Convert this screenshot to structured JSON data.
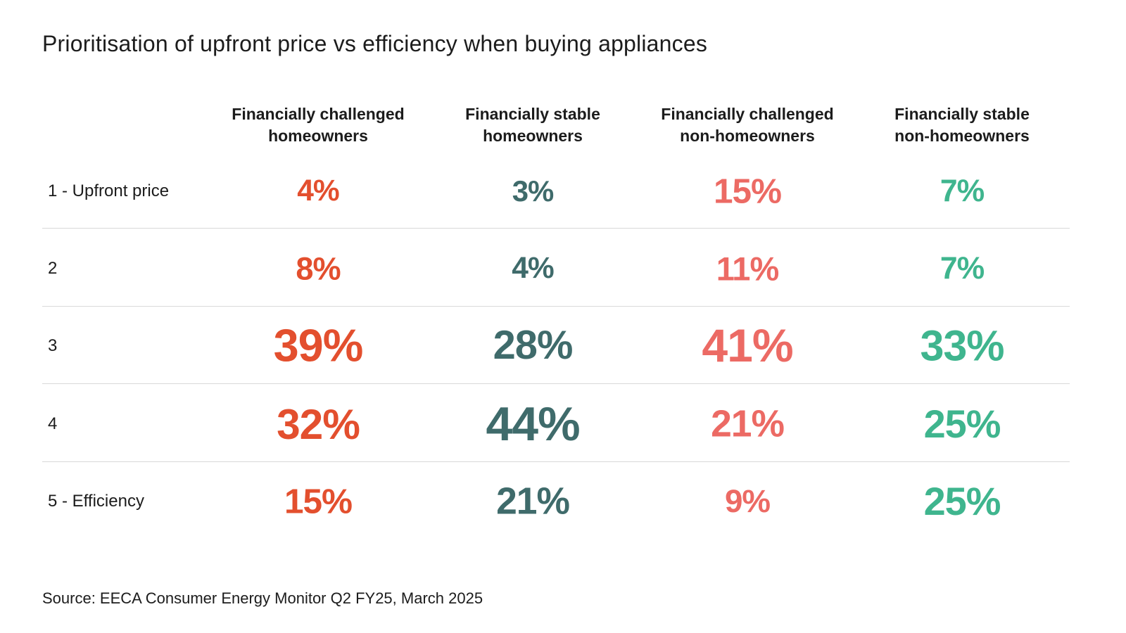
{
  "title": "Prioritisation of upfront price vs efficiency when buying appliances",
  "source": "Source: EECA Consumer Energy Monitor Q2 FY25, March 2025",
  "colors": {
    "text": "#1c1c1c",
    "divider": "#d9d9d9"
  },
  "chart_data": {
    "type": "table",
    "title": "Prioritisation of upfront price vs efficiency when buying appliances",
    "unit": "%",
    "columns": [
      {
        "line1": "Financially challenged",
        "line2": "homeowners",
        "color": "#e34f2e"
      },
      {
        "line1": "Financially stable",
        "line2": "homeowners",
        "color": "#3f6b6b"
      },
      {
        "line1": "Financially challenged",
        "line2": "non-homeowners",
        "color": "#ec6a64"
      },
      {
        "line1": "Financially stable",
        "line2": "non-homeowners",
        "color": "#3fb58e"
      }
    ],
    "rows": [
      {
        "label": "1 - Upfront price",
        "values": [
          4,
          3,
          15,
          7
        ]
      },
      {
        "label": "2",
        "values": [
          8,
          4,
          11,
          7
        ]
      },
      {
        "label": "3",
        "values": [
          39,
          28,
          41,
          33
        ]
      },
      {
        "label": "4",
        "values": [
          32,
          44,
          21,
          25
        ]
      },
      {
        "label": "5 - Efficiency",
        "values": [
          15,
          21,
          9,
          25
        ]
      }
    ]
  }
}
